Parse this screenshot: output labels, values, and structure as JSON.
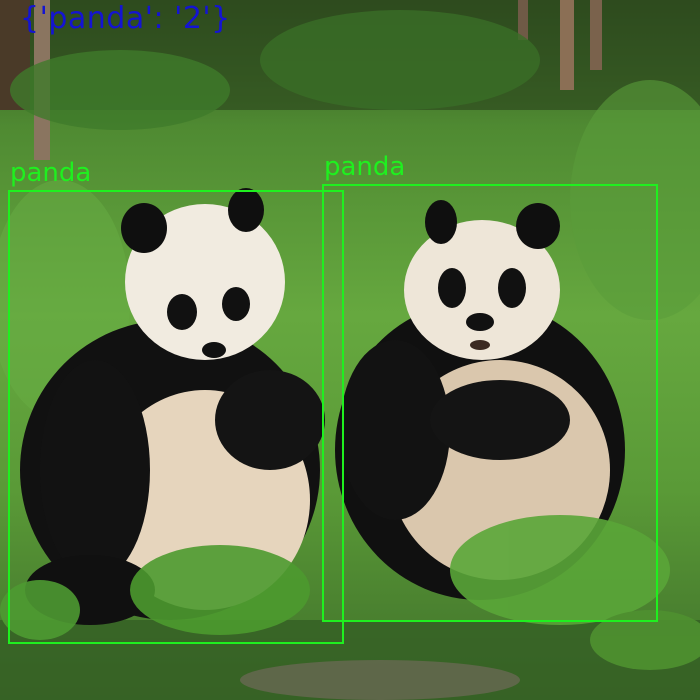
{
  "summary_text": "{'panda': '2'}",
  "detections": [
    {
      "label": "panda"
    },
    {
      "label": "panda"
    }
  ],
  "colors": {
    "summary_text": "#1414d2",
    "box": "#1ff01f"
  }
}
